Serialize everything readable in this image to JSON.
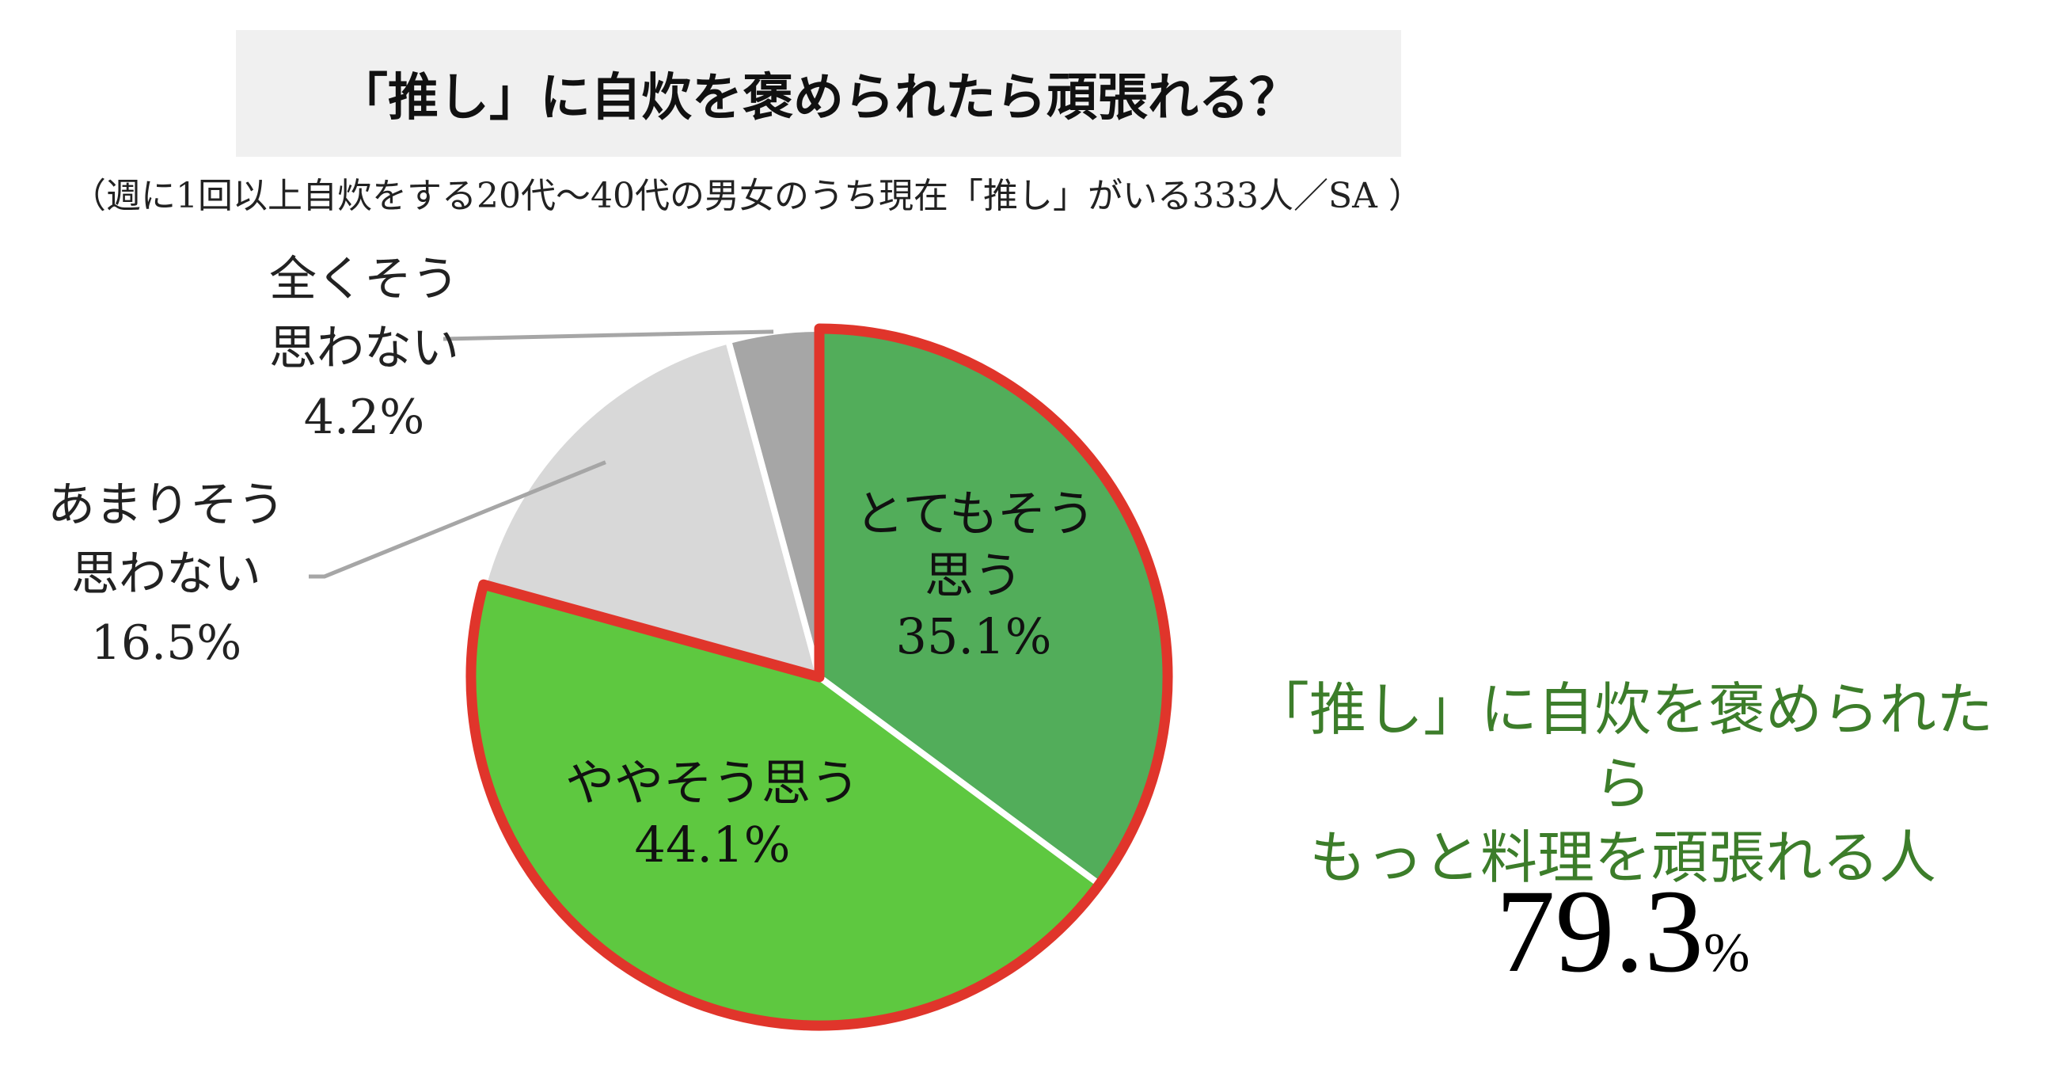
{
  "title": "「推し」に自炊を褒められたら頑張れる？",
  "subtitle": "（週に1回以上自炊をする20代～40代の男女のうち現在「推し」がいる333人／SA ）",
  "chart_data": {
    "type": "pie",
    "start_angle_deg": 0,
    "direction": "clockwise",
    "slices": [
      {
        "label_lines": [
          "とてもそう",
          "思う"
        ],
        "value": 35.1,
        "value_text": "35.1%",
        "color": "#52ad5a",
        "highlight": true
      },
      {
        "label_lines": [
          "ややそう思う"
        ],
        "value": 44.1,
        "value_text": "44.1%",
        "color": "#5ec840",
        "highlight": true
      },
      {
        "label_lines": [
          "あまりそう",
          "思わない"
        ],
        "value": 16.5,
        "value_text": "16.5%",
        "color": "#d8d8d8",
        "highlight": false
      },
      {
        "label_lines": [
          "全くそう",
          "思わない"
        ],
        "value": 4.2,
        "value_text": "4.2%",
        "color": "#a6a6a6",
        "highlight": false
      }
    ],
    "highlight_outline_color": "#e0352b"
  },
  "callout": {
    "line1": "「推し」に自炊を褒められたら",
    "line2": "もっと料理を頑張れる人",
    "value": "79.3",
    "unit": "%"
  }
}
